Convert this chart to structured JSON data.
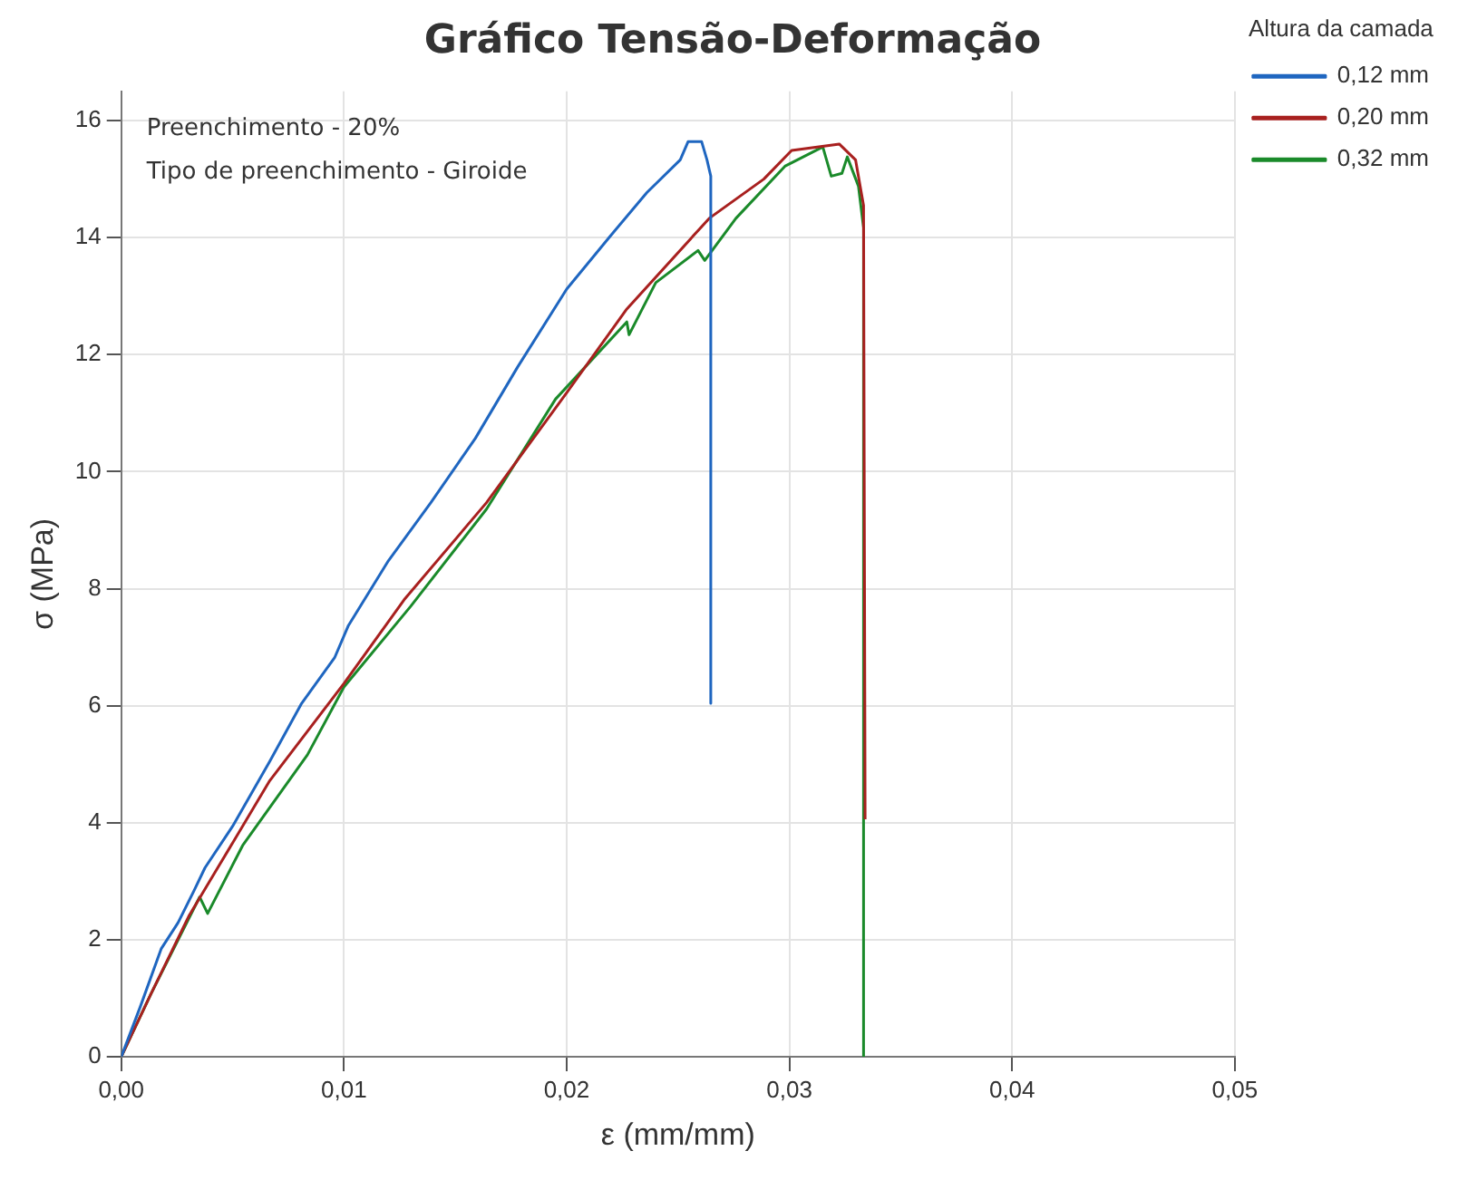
{
  "chart_data": {
    "type": "line",
    "title": "Gráfico Tensão-Deformação",
    "xlabel": "ε (mm/mm)",
    "ylabel": "σ (MPa)",
    "legend_title": "Altura da camada",
    "xlim": [
      0,
      0.05
    ],
    "xticks": [
      {
        "value": 0,
        "label": "0,00"
      },
      {
        "value": 0.01,
        "label": "0,01"
      },
      {
        "value": 0.02,
        "label": "0,02"
      },
      {
        "value": 0.03,
        "label": "0,03"
      },
      {
        "value": 0.04,
        "label": "0,04"
      },
      {
        "value": 0.05,
        "label": "0,05"
      }
    ],
    "ylim": [
      0,
      16.5
    ],
    "yticks": [
      0,
      2,
      4,
      6,
      8,
      10,
      12,
      14,
      16
    ],
    "grid": true,
    "legend": "right",
    "marker": "none",
    "line_style": "solid",
    "annotations": [
      "Preenchimento - 20%",
      "Tipo de preenchimento - Giroide"
    ],
    "series": [
      {
        "name": "0,12 mm",
        "color": "#1f66c0",
        "x": [
          0,
          0.00085,
          0.0018,
          0.00255,
          0.00327,
          0.00376,
          0.005,
          0.00667,
          0.0081,
          0.00958,
          0.0102,
          0.012,
          0.0139,
          0.0159,
          0.0178,
          0.02,
          0.0219,
          0.0236,
          0.0251,
          0.02545,
          0.02606,
          0.0263,
          0.02647,
          0.02647
        ],
        "values": [
          0,
          0.85,
          1.85,
          2.29,
          2.84,
          3.23,
          3.94,
          5.05,
          6.04,
          6.82,
          7.37,
          8.48,
          9.47,
          10.57,
          11.79,
          13.12,
          14.0,
          14.77,
          15.33,
          15.64,
          15.64,
          15.33,
          15.05,
          6.04
        ]
      },
      {
        "name": "0,20 mm",
        "color": "#a8201f",
        "x": [
          0,
          0.00133,
          0.00303,
          0.00424,
          0.00667,
          0.01,
          0.0127,
          0.0164,
          0.02,
          0.0227,
          0.0264,
          0.02885,
          0.0301,
          0.03224,
          0.03297,
          0.03333,
          0.0334
        ],
        "values": [
          0,
          1.07,
          2.4,
          3.17,
          4.72,
          6.38,
          7.81,
          9.47,
          11.35,
          12.78,
          14.33,
          15.0,
          15.49,
          15.6,
          15.33,
          14.55,
          4.06
        ]
      },
      {
        "name": "0,32 mm",
        "color": "#1a8a2a",
        "x": [
          0,
          0.00133,
          0.00352,
          0.00388,
          0.00545,
          0.00836,
          0.01,
          0.013,
          0.0164,
          0.0195,
          0.0227,
          0.0228,
          0.024,
          0.0259,
          0.0262,
          0.0276,
          0.0298,
          0.0315,
          0.03188,
          0.03236,
          0.0326,
          0.0331,
          0.03333,
          0.03333
        ],
        "values": [
          0,
          1.07,
          2.73,
          2.45,
          3.61,
          5.16,
          6.32,
          7.7,
          9.36,
          11.24,
          12.56,
          12.34,
          13.23,
          13.78,
          13.61,
          14.33,
          15.22,
          15.55,
          15.05,
          15.1,
          15.38,
          14.88,
          14.17,
          0
        ]
      }
    ]
  }
}
